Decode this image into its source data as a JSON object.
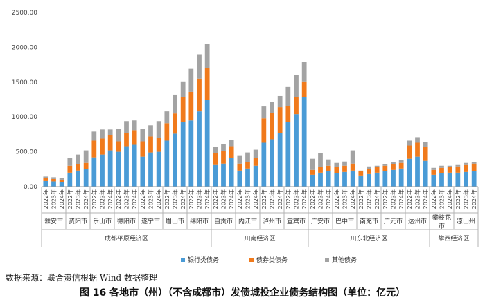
{
  "source": "数据来源：联合资信根据 Wind 数据整理",
  "caption": "图 16 各地市（州）（不含成都市）发债城投企业债务结构图（单位：亿元）",
  "chart_data": {
    "type": "bar",
    "stacked": true,
    "ylim": [
      0,
      2500
    ],
    "yticks": [
      "0.00",
      "500.00",
      "1000.00",
      "1500.00",
      "2000.00",
      "2500.00"
    ],
    "years": [
      "2022年",
      "2023年",
      "2024年"
    ],
    "cities": [
      "雅安市",
      "资阳市",
      "乐山市",
      "德阳市",
      "遂宁市",
      "眉山市",
      "绵阳市",
      "自贡市",
      "内江市",
      "泸州市",
      "宜宾市",
      "广安市",
      "巴中市",
      "南充市",
      "广元市",
      "达州市",
      "攀枝花市",
      "凉山州"
    ],
    "regions": [
      {
        "name": "成都平原经济区",
        "span": 7
      },
      {
        "name": "川南经济区",
        "span": 4
      },
      {
        "name": "川东北经济区",
        "span": 5
      },
      {
        "name": "攀西经济区",
        "span": 2
      }
    ],
    "series": [
      {
        "name": "银行类债务",
        "color": "#4a9bd6",
        "values": [
          80,
          75,
          60,
          200,
          230,
          250,
          420,
          460,
          520,
          500,
          580,
          600,
          430,
          490,
          500,
          660,
          760,
          930,
          950,
          1080,
          1250,
          310,
          330,
          410,
          230,
          260,
          300,
          630,
          680,
          770,
          930,
          1040,
          1280,
          170,
          200,
          220,
          190,
          210,
          230,
          160,
          180,
          200,
          220,
          240,
          260,
          400,
          430,
          370,
          170,
          190,
          200,
          200,
          210,
          220
        ]
      },
      {
        "name": "债券类债务",
        "color": "#f07a1c",
        "values": [
          40,
          35,
          40,
          100,
          90,
          90,
          240,
          230,
          220,
          150,
          190,
          210,
          220,
          230,
          200,
          250,
          290,
          350,
          410,
          470,
          450,
          170,
          180,
          170,
          100,
          90,
          110,
          350,
          380,
          370,
          230,
          240,
          230,
          70,
          80,
          80,
          90,
          90,
          100,
          60,
          70,
          80,
          80,
          80,
          80,
          190,
          200,
          200,
          70,
          80,
          80,
          90,
          100,
          110
        ]
      },
      {
        "name": "其他债务",
        "color": "#a3a3a3",
        "values": [
          25,
          25,
          25,
          110,
          140,
          180,
          130,
          130,
          80,
          180,
          170,
          140,
          180,
          160,
          240,
          170,
          270,
          230,
          330,
          350,
          350,
          90,
          100,
          90,
          110,
          140,
          120,
          170,
          160,
          160,
          270,
          320,
          280,
          160,
          200,
          90,
          60,
          60,
          190,
          10,
          40,
          20,
          20,
          30,
          40,
          70,
          80,
          70,
          30,
          30,
          20,
          20,
          30,
          20
        ]
      }
    ]
  }
}
